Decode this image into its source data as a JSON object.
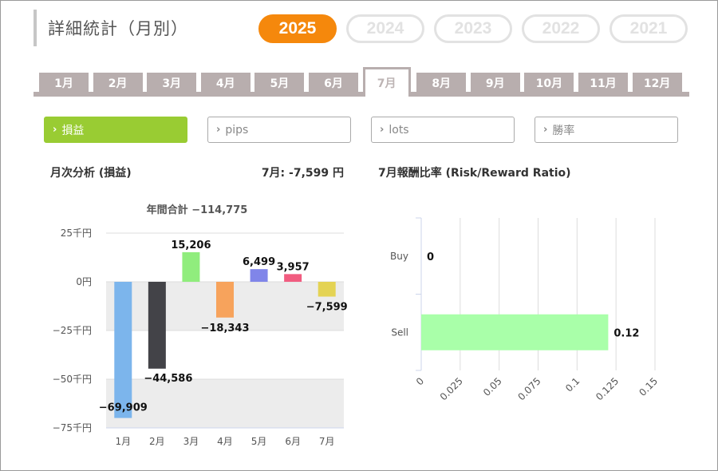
{
  "header": {
    "title": "詳細統計（月別）"
  },
  "years": [
    "2025",
    "2024",
    "2023",
    "2022",
    "2021"
  ],
  "active_year": "2025",
  "months": [
    "1月",
    "2月",
    "3月",
    "4月",
    "5月",
    "6月",
    "7月",
    "8月",
    "9月",
    "10月",
    "11月",
    "12月"
  ],
  "active_month_index": 6,
  "metrics": [
    "損益",
    "pips",
    "lots",
    "勝率"
  ],
  "active_metric_index": 0,
  "left": {
    "title": "月次分析 (損益)",
    "month_summary": "7月:  -7,599 円"
  },
  "right": {
    "title": "7月報酬比率 (Risk/Reward Ratio)"
  },
  "colors": {
    "accent_orange": "#f5880c",
    "accent_green": "#99cc33"
  },
  "chart_data": [
    {
      "type": "bar",
      "title": "年間合計 −114,775",
      "categories": [
        "1月",
        "2月",
        "3月",
        "4月",
        "5月",
        "6月",
        "7月"
      ],
      "values": [
        -69909,
        -44586,
        15206,
        -18343,
        6499,
        3957,
        -7599
      ],
      "value_labels": [
        "−69,909",
        "−44,586",
        "15,206",
        "−18,343",
        "6,499",
        "3,957",
        "−7,599"
      ],
      "bar_colors": [
        "#7cb5ec",
        "#434348",
        "#90ed7d",
        "#f7a35c",
        "#8085e9",
        "#f15c80",
        "#e4d354"
      ],
      "yticks": [
        25000,
        0,
        -25000,
        -50000,
        -75000
      ],
      "ytick_labels": [
        "25千円",
        "0円",
        "−25千円",
        "−50千円",
        "−75千円"
      ],
      "ylim": [
        -75000,
        25000
      ],
      "grid": true
    },
    {
      "type": "bar",
      "orientation": "horizontal",
      "categories": [
        "Buy",
        "Sell"
      ],
      "values": [
        0,
        0.12
      ],
      "value_labels": [
        "0",
        "0.12"
      ],
      "bar_color": "#a9ffa9",
      "xticks": [
        0,
        0.025,
        0.05,
        0.075,
        0.1,
        0.125,
        0.15
      ],
      "xtick_labels": [
        "0",
        "0.025",
        "0.05",
        "0.075",
        "0.1",
        "0.125",
        "0.15"
      ],
      "xlim": [
        0,
        0.15
      ],
      "grid": true
    }
  ]
}
